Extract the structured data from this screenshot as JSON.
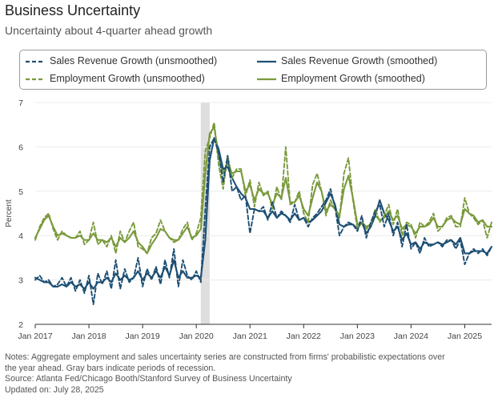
{
  "header": {
    "title": "Business Uncertainty",
    "subtitle": "Uncertainty about 4-quarter ahead growth"
  },
  "legend": {
    "items": [
      {
        "label": "Sales Revenue Growth (unsmoothed)",
        "color": "#1d4f73",
        "style": "dashed"
      },
      {
        "label": "Sales Revenue Growth (smoothed)",
        "color": "#1d4f73",
        "style": "solid"
      },
      {
        "label": "Employment Growth (unsmoothed)",
        "color": "#7a9a3c",
        "style": "dashed"
      },
      {
        "label": "Employment Growth (smoothed)",
        "color": "#7a9a3c",
        "style": "solid"
      }
    ]
  },
  "notes": {
    "line1": "Notes: Aggregate employment and sales uncertainty series are constructed from firms' probabilistic expectations over",
    "line2": "the year ahead. Gray bars indicate periods of recession.",
    "source": "Source: Atlanta Fed/Chicago Booth/Stanford Survey of Business Uncertainty",
    "updated": "Updated on: July 28, 2025"
  },
  "chart_data": {
    "type": "line",
    "ylabel": "Percent",
    "xlabel": "",
    "ylim": [
      2,
      7
    ],
    "y_ticks": [
      2,
      3,
      4,
      5,
      6,
      7
    ],
    "x_ticks": [
      {
        "label": "Jan 2017",
        "t": 0
      },
      {
        "label": "Jan 2018",
        "t": 12
      },
      {
        "label": "Jan 2019",
        "t": 24
      },
      {
        "label": "Jan 2020",
        "t": 36
      },
      {
        "label": "Jan 2021",
        "t": 48
      },
      {
        "label": "Jan 2022",
        "t": 60
      },
      {
        "label": "Jan 2023",
        "t": 72
      },
      {
        "label": "Jan 2024",
        "t": 84
      },
      {
        "label": "Jan 2025",
        "t": 96
      }
    ],
    "x_unit": "months since Jan 2017",
    "xlim": [
      0,
      102
    ],
    "recession": [
      {
        "start": 37,
        "end": 39
      }
    ],
    "series": [
      {
        "name": "Sales Revenue Growth (unsmoothed)",
        "color": "#1d4f73",
        "style": "dashed",
        "values": [
          3.0,
          3.1,
          2.95,
          3.0,
          2.85,
          2.9,
          3.05,
          2.85,
          3.05,
          2.75,
          3.0,
          2.7,
          3.1,
          2.45,
          3.15,
          2.9,
          3.2,
          2.8,
          3.45,
          2.8,
          3.25,
          2.95,
          3.05,
          3.5,
          2.85,
          3.25,
          3.0,
          3.3,
          2.9,
          3.45,
          3.05,
          3.7,
          2.85,
          3.45,
          3.1,
          3.0,
          3.2,
          2.95,
          4.6,
          6.0,
          6.2,
          5.85,
          5.2,
          5.8,
          5.0,
          5.1,
          4.8,
          4.9,
          4.05,
          4.6,
          4.55,
          4.65,
          4.35,
          4.75,
          4.4,
          4.55,
          4.45,
          4.3,
          4.7,
          4.35,
          4.4,
          4.2,
          4.4,
          4.5,
          4.65,
          4.8,
          5.05,
          4.65,
          4.0,
          4.2,
          4.3,
          4.25,
          4.1,
          4.45,
          3.95,
          4.3,
          4.55,
          4.7,
          4.2,
          4.5,
          4.0,
          4.3,
          3.75,
          4.25,
          3.7,
          3.85,
          3.6,
          3.95,
          3.75,
          3.8,
          3.85,
          3.75,
          3.9,
          3.9,
          3.7,
          3.9,
          3.35,
          3.6,
          3.7,
          3.6,
          3.7,
          3.55,
          3.75
        ]
      },
      {
        "name": "Sales Revenue Growth (smoothed)",
        "color": "#1d4f73",
        "style": "solid",
        "values": [
          3.05,
          3.0,
          2.95,
          2.95,
          2.85,
          2.85,
          2.9,
          2.85,
          2.95,
          2.85,
          2.9,
          2.8,
          2.95,
          2.8,
          2.95,
          2.95,
          3.05,
          2.95,
          3.15,
          3.0,
          3.1,
          3.0,
          3.05,
          3.2,
          3.0,
          3.15,
          3.05,
          3.2,
          3.05,
          3.3,
          3.1,
          3.45,
          3.05,
          3.2,
          3.05,
          3.05,
          3.1,
          3.05,
          3.9,
          5.7,
          6.2,
          5.95,
          5.5,
          5.55,
          5.3,
          5.1,
          4.95,
          4.85,
          4.6,
          4.6,
          4.55,
          4.55,
          4.4,
          4.55,
          4.4,
          4.5,
          4.45,
          4.35,
          4.5,
          4.35,
          4.4,
          4.3,
          4.35,
          4.45,
          4.55,
          4.75,
          4.95,
          4.7,
          4.25,
          4.2,
          4.25,
          4.25,
          4.15,
          4.3,
          4.05,
          4.2,
          4.45,
          4.8,
          4.5,
          4.35,
          4.1,
          4.2,
          3.9,
          4.05,
          3.8,
          3.85,
          3.7,
          3.85,
          3.8,
          3.8,
          3.85,
          3.8,
          3.85,
          3.9,
          3.8,
          3.95,
          3.6,
          3.6,
          3.65,
          3.65,
          3.65,
          3.6,
          3.75
        ]
      },
      {
        "name": "Employment Growth (unsmoothed)",
        "color": "#7a9a3c",
        "style": "dashed",
        "values": [
          3.9,
          4.2,
          4.4,
          4.5,
          4.15,
          3.9,
          4.1,
          4.0,
          3.95,
          3.95,
          4.1,
          3.8,
          3.9,
          4.3,
          3.8,
          3.9,
          3.75,
          4.0,
          3.6,
          4.1,
          3.85,
          4.1,
          4.3,
          3.75,
          3.7,
          3.6,
          3.95,
          4.05,
          4.35,
          4.1,
          3.95,
          3.85,
          3.9,
          4.15,
          4.3,
          3.9,
          4.05,
          4.4,
          5.9,
          6.2,
          6.55,
          5.6,
          5.05,
          5.8,
          5.3,
          5.5,
          5.5,
          4.9,
          5.25,
          4.65,
          5.2,
          4.9,
          5.0,
          4.6,
          5.1,
          4.8,
          6.0,
          4.7,
          4.75,
          5.0,
          4.5,
          4.3,
          5.15,
          5.4,
          5.0,
          4.45,
          4.8,
          4.6,
          4.4,
          5.4,
          5.75,
          4.8,
          4.15,
          4.3,
          4.15,
          4.25,
          4.6,
          4.3,
          4.45,
          4.7,
          4.25,
          4.6,
          4.0,
          4.3,
          4.25,
          3.95,
          4.3,
          4.2,
          4.3,
          4.5,
          4.1,
          4.2,
          4.4,
          4.45,
          4.2,
          4.2,
          4.85,
          4.5,
          4.4,
          4.25,
          4.35,
          3.95,
          4.3
        ]
      },
      {
        "name": "Employment Growth (smoothed)",
        "color": "#7a9a3c",
        "style": "solid",
        "values": [
          3.95,
          4.15,
          4.35,
          4.45,
          4.2,
          4.0,
          4.05,
          4.0,
          3.95,
          3.95,
          4.0,
          3.9,
          3.9,
          4.05,
          3.9,
          3.9,
          3.85,
          3.95,
          3.75,
          3.95,
          3.85,
          3.95,
          4.1,
          3.85,
          3.75,
          3.6,
          3.8,
          3.95,
          4.15,
          4.1,
          3.95,
          3.9,
          3.9,
          4.05,
          4.2,
          3.95,
          4.0,
          4.15,
          5.4,
          6.3,
          6.45,
          5.8,
          5.4,
          5.65,
          5.4,
          5.45,
          5.45,
          5.0,
          5.15,
          4.8,
          5.05,
          4.95,
          4.95,
          4.7,
          4.95,
          4.85,
          5.3,
          4.75,
          4.75,
          4.9,
          4.6,
          4.45,
          4.85,
          5.2,
          5.0,
          4.55,
          4.7,
          4.6,
          4.45,
          5.05,
          5.35,
          4.85,
          4.25,
          4.3,
          4.2,
          4.25,
          4.45,
          4.35,
          4.4,
          4.55,
          4.35,
          4.45,
          4.15,
          4.25,
          4.2,
          4.05,
          4.2,
          4.2,
          4.25,
          4.4,
          4.2,
          4.2,
          4.35,
          4.4,
          4.3,
          4.25,
          4.6,
          4.5,
          4.45,
          4.3,
          4.35,
          4.2,
          4.2
        ]
      }
    ]
  }
}
